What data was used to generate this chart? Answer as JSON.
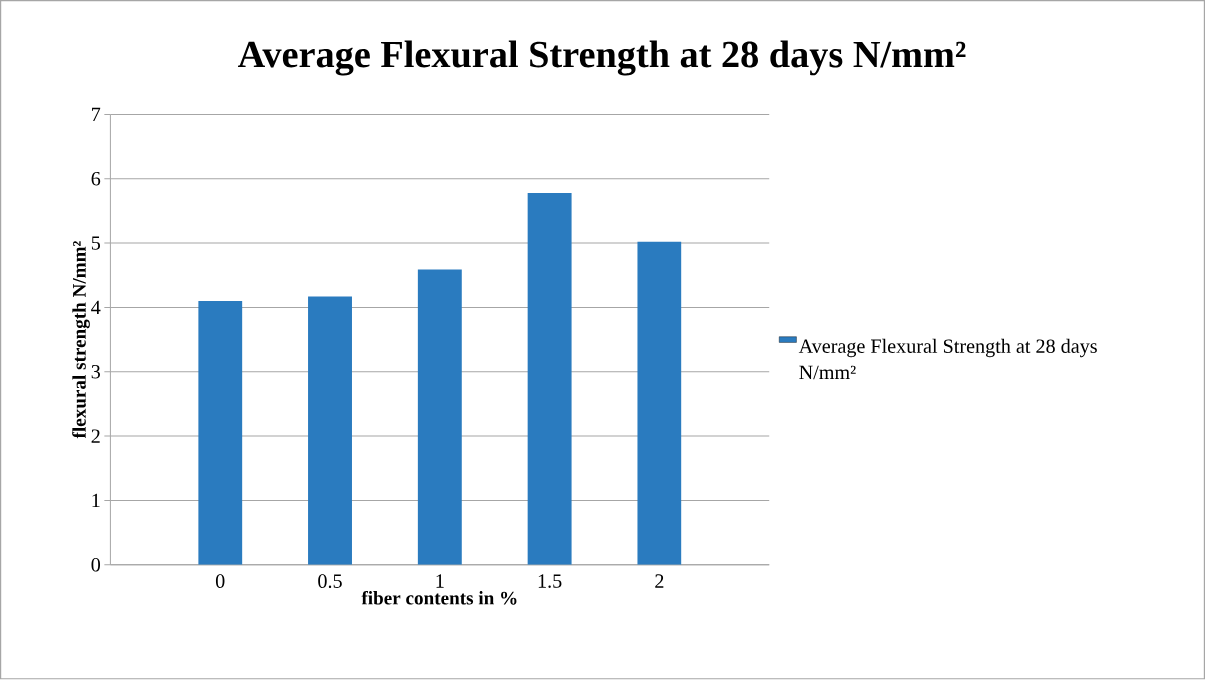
{
  "chart_data": {
    "type": "bar",
    "title": "Average Flexural Strength at 28 days N/mm²",
    "xlabel": "fiber contents in %",
    "ylabel": "flexural strength N/mm²",
    "categories": [
      "0",
      "0.5",
      "1",
      "1.5",
      "2"
    ],
    "series": [
      {
        "name": "Average Flexural Strength at 28 days N/mm²",
        "color": "#2a7bbf",
        "values": [
          4.1,
          4.17,
          4.59,
          5.78,
          5.02
        ]
      }
    ],
    "ylim": [
      0,
      7
    ],
    "yticks": [
      0,
      1,
      2,
      3,
      4,
      5,
      6,
      7
    ],
    "grid": "y",
    "legend": "right"
  }
}
